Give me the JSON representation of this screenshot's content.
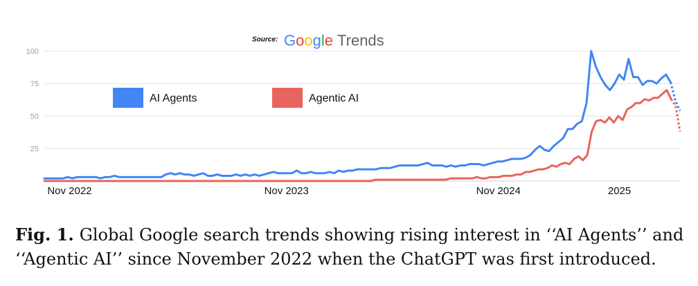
{
  "header": {
    "source_label": "Source:",
    "brand_letters": [
      {
        "ch": "G",
        "color": "#4285F4"
      },
      {
        "ch": "o",
        "color": "#EA4335"
      },
      {
        "ch": "o",
        "color": "#FBBC05"
      },
      {
        "ch": "g",
        "color": "#4285F4"
      },
      {
        "ch": "l",
        "color": "#34A853"
      },
      {
        "ch": "e",
        "color": "#EA4335"
      }
    ],
    "brand_suffix": "Trends"
  },
  "caption": {
    "label": "Fig. 1.",
    "line1": "Global Google search trends showing rising interest in ‘‘AI Agents’’ and",
    "line2": "‘‘Agentic AI’’ since November 2022 when the ChatGPT was first introduced."
  },
  "chart_data": {
    "type": "line",
    "ylim": [
      0,
      100
    ],
    "yticks": [
      25,
      50,
      75,
      100
    ],
    "xlim": [
      0,
      126
    ],
    "xticks": [
      {
        "label": "Nov 2022",
        "x": 5
      },
      {
        "label": "Nov 2023",
        "x": 48
      },
      {
        "label": "Nov 2024",
        "x": 90
      },
      {
        "label": "2025",
        "x": 114
      }
    ],
    "grid": true,
    "legend_position": "top-left",
    "series": [
      {
        "name": "AI Agents",
        "color": "#4285F4",
        "values": [
          2,
          2,
          2,
          2,
          2,
          3,
          2,
          3,
          3,
          3,
          3,
          3,
          2,
          3,
          3,
          4,
          3,
          3,
          3,
          3,
          3,
          3,
          3,
          3,
          3,
          3,
          5,
          6,
          5,
          6,
          5,
          5,
          4,
          5,
          6,
          4,
          4,
          5,
          4,
          4,
          4,
          5,
          4,
          5,
          4,
          5,
          4,
          5,
          6,
          7,
          6,
          6,
          6,
          6,
          8,
          6,
          6,
          7,
          6,
          6,
          6,
          7,
          6,
          8,
          7,
          8,
          8,
          9,
          9,
          9,
          9,
          9,
          10,
          10,
          10,
          11,
          12,
          12,
          12,
          12,
          12,
          13,
          14,
          12,
          12,
          12,
          11,
          12,
          11,
          12,
          12,
          13,
          13,
          13,
          12,
          13,
          14,
          15,
          15,
          16,
          17,
          17,
          17,
          18,
          20,
          24,
          27,
          24,
          23,
          27,
          30,
          33,
          40,
          40,
          44,
          46,
          60,
          100,
          88,
          80,
          74,
          70,
          75,
          82,
          78,
          94,
          80,
          80,
          74,
          77,
          77,
          75,
          79,
          82,
          76,
          62,
          54
        ],
        "dotted_from": 134
      },
      {
        "name": "Agentic AI",
        "color": "#E8645E",
        "values": [
          0,
          0,
          0,
          0,
          0,
          0,
          0,
          0,
          0,
          0,
          0,
          0,
          0,
          0,
          0,
          0,
          0,
          0,
          0,
          0,
          0,
          0,
          0,
          0,
          0,
          0,
          0,
          0,
          0,
          0,
          0,
          0,
          0,
          0,
          0,
          0,
          0,
          0,
          0,
          0,
          0,
          0,
          0,
          0,
          0,
          0,
          0,
          0,
          0,
          0,
          0,
          0,
          0,
          0,
          0,
          0,
          0,
          0,
          0,
          0,
          0,
          0,
          0,
          0,
          0,
          0,
          0,
          0,
          0,
          0,
          0,
          0,
          0,
          0,
          0,
          1,
          1,
          1,
          1,
          1,
          1,
          1,
          1,
          1,
          1,
          1,
          1,
          1,
          1,
          1,
          1,
          1,
          2,
          2,
          2,
          2,
          2,
          2,
          3,
          2,
          2,
          3,
          3,
          3,
          4,
          4,
          4,
          5,
          5,
          7,
          7,
          8,
          9,
          9,
          10,
          12,
          11,
          13,
          14,
          13,
          17,
          19,
          16,
          20,
          38,
          46,
          47,
          45,
          49,
          45,
          50,
          47,
          55,
          57,
          60,
          60,
          63,
          62,
          64,
          64,
          67,
          70,
          63,
          58,
          38
        ],
        "dotted_from": 142
      }
    ]
  }
}
